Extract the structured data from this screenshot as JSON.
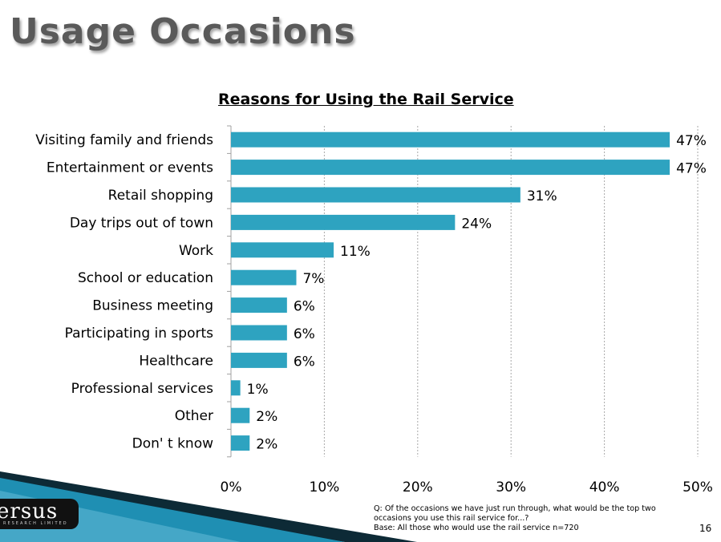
{
  "slide": {
    "title": "Usage Occasions",
    "page_number": "16"
  },
  "logo": {
    "text": "ersus",
    "subtext": "RESEARCH LIMITED"
  },
  "footnote": {
    "question": "Q: Of the occasions we have just run through, what would be the top two",
    "question_cont": "occasions you use this rail service for...?",
    "base": "Base: All those who would use the rail service n=720"
  },
  "colors": {
    "bar": "#2ea3c0",
    "grid": "#a9a9a9",
    "axis": "#a0a0a0",
    "stripe_dark": "#0d2a36",
    "stripe_blue": "#1f8fb3"
  },
  "chart_data": {
    "type": "bar",
    "orientation": "horizontal",
    "title": "Reasons for Using the Rail Service",
    "categories": [
      "Visiting family and friends",
      "Entertainment or events",
      "Retail shopping",
      "Day trips out of town",
      "Work",
      "School or education",
      "Business meeting",
      "Participating in sports",
      "Healthcare",
      "Professional services",
      "Other",
      "Don' t know"
    ],
    "values": [
      47,
      47,
      31,
      24,
      11,
      7,
      6,
      6,
      6,
      1,
      2,
      2
    ],
    "value_labels": [
      "47%",
      "47%",
      "31%",
      "24%",
      "11%",
      "7%",
      "6%",
      "6%",
      "6%",
      "1%",
      "2%",
      "2%"
    ],
    "xlim": [
      0,
      50
    ],
    "xticks": [
      0,
      10,
      20,
      30,
      40,
      50
    ],
    "xtick_labels": [
      "0%",
      "10%",
      "20%",
      "30%",
      "40%",
      "50%"
    ],
    "grid": "vertical dashed",
    "legend": "none"
  }
}
